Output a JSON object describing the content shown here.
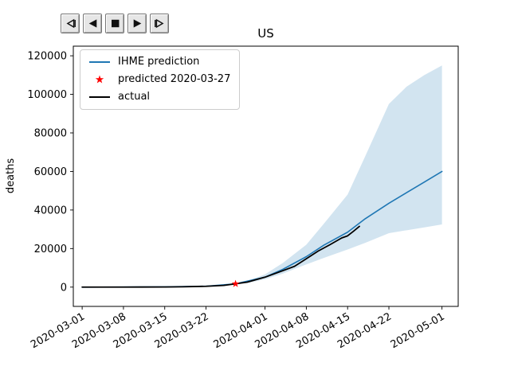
{
  "window": {
    "background": "#ffffff"
  },
  "toolbar": {
    "buttons": [
      {
        "name": "step-backward",
        "icon": "step-backward-icon"
      },
      {
        "name": "play-reverse",
        "icon": "play-reverse-icon"
      },
      {
        "name": "stop",
        "icon": "stop-icon"
      },
      {
        "name": "play",
        "icon": "play-icon"
      },
      {
        "name": "step-forward",
        "icon": "step-forward-icon"
      }
    ]
  },
  "chart_data": {
    "type": "line",
    "title": "US",
    "xlabel": "",
    "ylabel": "deaths",
    "grid": false,
    "legend_position": "upper-left",
    "x_tick_labels": [
      "2020-03-01",
      "2020-03-08",
      "2020-03-15",
      "2020-03-22",
      "2020-04-01",
      "2020-04-08",
      "2020-04-15",
      "2020-04-22",
      "2020-05-01"
    ],
    "y_ticks": [
      0,
      20000,
      40000,
      60000,
      80000,
      100000,
      120000
    ],
    "xlim": [
      "2020-02-28T12:00:00",
      "2020-05-03T18:00:00"
    ],
    "ylim": [
      -10000,
      125000
    ],
    "series": [
      {
        "name": "IHME prediction",
        "color": "#1f77b4",
        "width": 1.6,
        "points": [
          [
            "2020-03-01",
            1
          ],
          [
            "2020-03-08",
            30
          ],
          [
            "2020-03-15",
            120
          ],
          [
            "2020-03-22",
            480
          ],
          [
            "2020-03-27",
            1700
          ],
          [
            "2020-04-01",
            5200
          ],
          [
            "2020-04-04",
            9200
          ],
          [
            "2020-04-08",
            15800
          ],
          [
            "2020-04-11",
            21800
          ],
          [
            "2020-04-15",
            28500
          ],
          [
            "2020-04-18",
            35500
          ],
          [
            "2020-04-22",
            43500
          ],
          [
            "2020-04-25",
            49000
          ],
          [
            "2020-04-28",
            54500
          ],
          [
            "2020-05-01",
            60000
          ]
        ]
      },
      {
        "name": "actual",
        "color": "#000000",
        "width": 1.8,
        "points": [
          [
            "2020-03-01",
            1
          ],
          [
            "2020-03-04",
            4
          ],
          [
            "2020-03-08",
            22
          ],
          [
            "2020-03-11",
            40
          ],
          [
            "2020-03-15",
            70
          ],
          [
            "2020-03-18",
            160
          ],
          [
            "2020-03-22",
            420
          ],
          [
            "2020-03-25",
            900
          ],
          [
            "2020-03-27",
            1700
          ],
          [
            "2020-03-29",
            2600
          ],
          [
            "2020-04-01",
            5150
          ],
          [
            "2020-04-04",
            8500
          ],
          [
            "2020-04-06",
            10800
          ],
          [
            "2020-04-08",
            14700
          ],
          [
            "2020-04-10",
            18700
          ],
          [
            "2020-04-12",
            22000
          ],
          [
            "2020-04-14",
            25500
          ],
          [
            "2020-04-15",
            26600
          ],
          [
            "2020-04-16",
            29000
          ],
          [
            "2020-04-17",
            31500
          ]
        ]
      }
    ],
    "band": {
      "color": "#1f77b4",
      "opacity": 0.2,
      "points": [
        [
          "2020-03-27",
          1500,
          1900
        ],
        [
          "2020-03-29",
          2100,
          3100
        ],
        [
          "2020-04-01",
          4100,
          6600
        ],
        [
          "2020-04-04",
          7000,
          12500
        ],
        [
          "2020-04-08",
          11800,
          22000
        ],
        [
          "2020-04-11",
          15200,
          33000
        ],
        [
          "2020-04-15",
          19500,
          48000
        ],
        [
          "2020-04-18",
          23000,
          68000
        ],
        [
          "2020-04-22",
          28000,
          95000
        ],
        [
          "2020-04-25",
          29500,
          104000
        ],
        [
          "2020-04-28",
          31000,
          110000
        ],
        [
          "2020-05-01",
          32500,
          115000
        ]
      ]
    },
    "marker": {
      "label": "predicted 2020-03-27",
      "x": "2020-03-27",
      "y": 1700,
      "color": "#ff0000",
      "shape": "star"
    },
    "legend": [
      {
        "swatch": "line",
        "color": "#1f77b4",
        "label": "IHME prediction"
      },
      {
        "swatch": "star",
        "color": "#ff0000",
        "label": "predicted 2020-03-27"
      },
      {
        "swatch": "line",
        "color": "#000000",
        "label": "actual"
      }
    ]
  }
}
